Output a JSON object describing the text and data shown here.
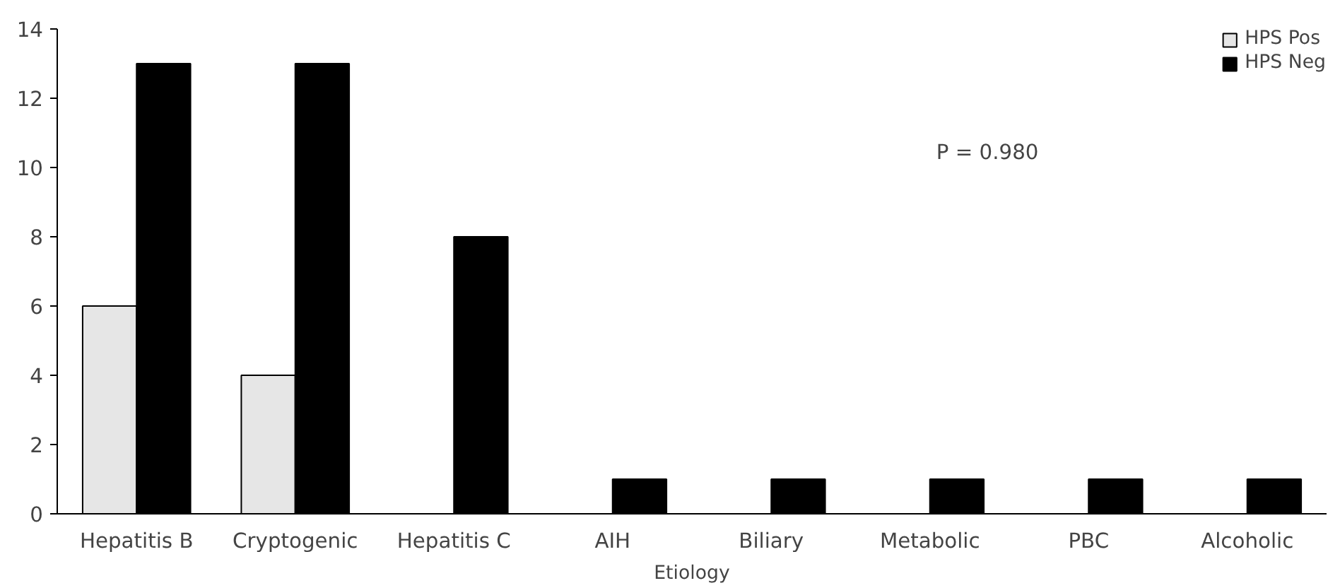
{
  "chart_data": {
    "type": "bar",
    "xlabel": "Etiology",
    "categories": [
      "Hepatitis B",
      "Cryptogenic",
      "Hepatitis C",
      "AIH",
      "Biliary",
      "Metabolic",
      "PBC",
      "Alcoholic"
    ],
    "series": [
      {
        "name": "HPS Pos",
        "color": "#e6e6e6",
        "values": [
          6,
          4,
          0,
          0,
          0,
          0,
          0,
          0
        ]
      },
      {
        "name": "HPS Neg",
        "color": "#000000",
        "values": [
          13,
          13,
          8,
          1,
          1,
          1,
          1,
          1
        ]
      }
    ],
    "ylim": [
      0,
      14
    ],
    "yticks": [
      0,
      2,
      4,
      6,
      8,
      10,
      12,
      14
    ],
    "annotations": [
      "P = 0.980"
    ],
    "grid": false,
    "legend": "top right"
  }
}
